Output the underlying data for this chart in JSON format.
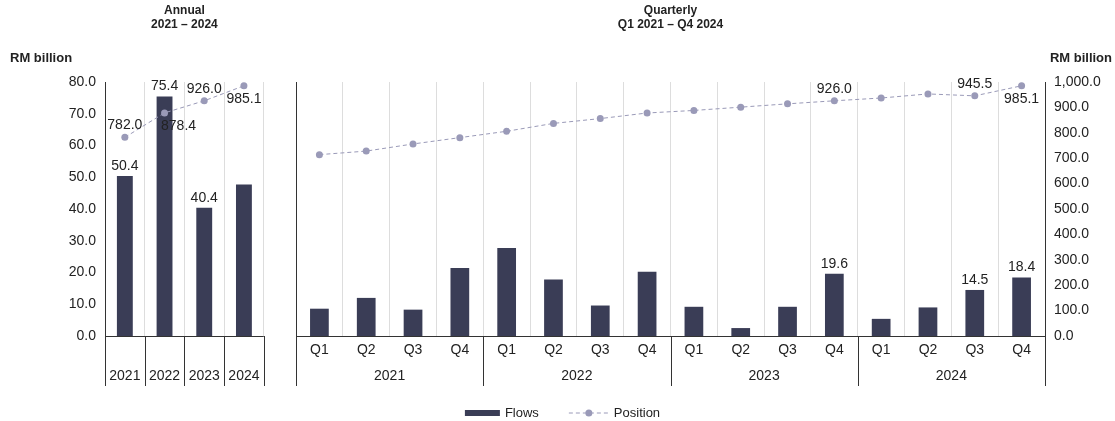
{
  "chart_data": [
    {
      "type": "bar",
      "title": "Annual",
      "subtitle": "2021 – 2024",
      "ylabel": "RM billion",
      "categories": [
        "2021",
        "2022",
        "2023",
        "2024"
      ],
      "series": [
        {
          "color": "#3a3d56",
          "values": [
            50.4,
            75.4,
            40.4,
            47.7
          ],
          "value_labels": [
            "50.4",
            "75.4",
            "40.4",
            null
          ]
        },
        {
          "type": "line",
          "axis": "y2",
          "color": "#9a9ab8",
          "marker": "circle",
          "line_style": "dashed",
          "values": [
            782.0,
            878.4,
            926.0,
            985.1
          ],
          "value_labels": [
            "782.0",
            "878.4",
            "926.0",
            "985.1"
          ]
        }
      ],
      "ylim": [
        0,
        80
      ],
      "yticks": [
        {
          "value": 0,
          "label": "0.0"
        },
        {
          "value": 10,
          "label": "10.0"
        },
        {
          "value": 20,
          "label": "20.0"
        },
        {
          "value": 30,
          "label": "30.0"
        },
        {
          "value": 40,
          "label": "40.0"
        },
        {
          "value": 50,
          "label": "50.0"
        },
        {
          "value": 60,
          "label": "60.0"
        },
        {
          "value": 70,
          "label": "70.0"
        },
        {
          "value": 80,
          "label": "80.0"
        }
      ],
      "y2lim": [
        0,
        1000
      ],
      "grid": "x",
      "legend": false,
      "tick_labels": [
        "x",
        "y"
      ]
    },
    {
      "type": "bar",
      "title": "Quarterly",
      "subtitle": "Q1 2021 – Q4 2024",
      "y2label": "RM billion",
      "categories": [
        "Q1",
        "Q2",
        "Q3",
        "Q4",
        "Q1",
        "Q2",
        "Q3",
        "Q4",
        "Q1",
        "Q2",
        "Q3",
        "Q4",
        "Q1",
        "Q2",
        "Q3",
        "Q4"
      ],
      "annotations": [
        "2021",
        "2022",
        "2023",
        "2024"
      ],
      "series": [
        {
          "name": "Flows",
          "color": "#3a3d56",
          "values": [
            8.6,
            12.0,
            8.3,
            21.4,
            27.7,
            17.8,
            9.6,
            20.2,
            9.2,
            2.5,
            9.2,
            19.6,
            5.4,
            9.0,
            14.5,
            18.4
          ],
          "value_labels": [
            null,
            null,
            null,
            null,
            null,
            null,
            null,
            null,
            null,
            null,
            null,
            "19.6",
            null,
            null,
            "14.5",
            "18.4"
          ]
        },
        {
          "type": "line",
          "name": "Position",
          "axis": "y2",
          "color": "#9a9ab8",
          "marker": "circle",
          "line_style": "dashed",
          "values": [
            714,
            728,
            756,
            781,
            806,
            837,
            856,
            878,
            888,
            901,
            914,
            926.0,
            937,
            953,
            945.5,
            985.1
          ],
          "value_labels": [
            null,
            null,
            null,
            null,
            null,
            null,
            null,
            null,
            null,
            null,
            null,
            "926.0",
            null,
            null,
            "945.5",
            "985.1"
          ]
        }
      ],
      "ylim": [
        0,
        80
      ],
      "y2lim": [
        0,
        1000
      ],
      "y2ticks": [
        {
          "value": 0,
          "label": "0.0"
        },
        {
          "value": 100,
          "label": "100.0"
        },
        {
          "value": 200,
          "label": "200.0"
        },
        {
          "value": 300,
          "label": "300.0"
        },
        {
          "value": 400,
          "label": "400.0"
        },
        {
          "value": 500,
          "label": "500.0"
        },
        {
          "value": 600,
          "label": "600.0"
        },
        {
          "value": 700,
          "label": "700.0"
        },
        {
          "value": 800,
          "label": "800.0"
        },
        {
          "value": 900,
          "label": "900.0"
        },
        {
          "value": 1000,
          "label": "1,000.0"
        }
      ],
      "grid": "x",
      "legend": "bottom",
      "tick_labels": [
        "x",
        "y2"
      ]
    }
  ]
}
